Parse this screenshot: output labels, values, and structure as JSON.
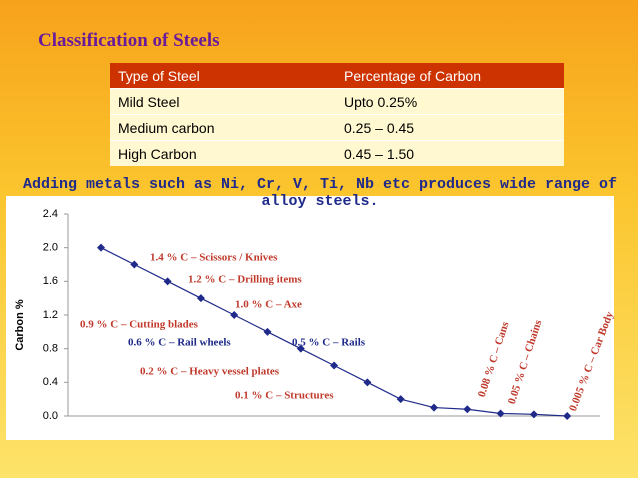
{
  "title": "Classification of  Steels",
  "table": {
    "header": [
      "Type of Steel",
      "Percentage of Carbon"
    ],
    "rows": [
      [
        "Mild Steel",
        "Upto 0.25%"
      ],
      [
        "Medium carbon",
        "0.25 – 0.45"
      ],
      [
        "High Carbon",
        "0.45 – 1.50"
      ]
    ]
  },
  "note": "Adding metals such as Ni, Cr, V, Ti, Nb etc produces wide range of alloy steels.",
  "chart_data": {
    "type": "line",
    "y_label": "Carbon %",
    "categories": [
      null,
      null,
      null,
      null,
      null,
      null,
      null,
      null,
      null,
      null,
      null,
      null,
      null,
      null,
      null
    ],
    "series": [
      {
        "color": "#1f2a8a",
        "values": [
          2.0,
          1.8,
          1.6,
          1.4,
          1.2,
          1.0,
          0.8,
          0.6,
          0.4,
          0.2,
          0.1,
          0.08,
          0.03,
          0.02,
          0.0
        ]
      }
    ],
    "ylim": [
      0,
      2.4
    ],
    "yticks": [
      {
        "value": 0,
        "label": "0.0"
      },
      0.4,
      0.8,
      1.2,
      1.6,
      {
        "value": 2,
        "label": "2.0"
      },
      2.4
    ],
    "annotations": [
      {
        "text": "1.4 % C – Scissors / Knives",
        "color": "#c0392b"
      },
      {
        "text": "1.2 % C – Drilling items",
        "color": "#c0392b"
      },
      {
        "text": "1.0 % C – Axe",
        "color": "#c0392b"
      },
      {
        "text": "0.9 % C – Cutting blades",
        "color": "#c0392b"
      },
      {
        "text": "0.6 % C – Rail wheels",
        "color": "#1f2a8a"
      },
      {
        "text": "0.5 % C – Rails",
        "color": "#1f2a8a"
      },
      {
        "text": "0.2 % C – Heavy vessel plates",
        "color": "#c0392b"
      },
      {
        "text": "0.1 % C – Structures",
        "color": "#c0392b"
      },
      {
        "text": "0.08 % C – Cans",
        "color": "#c0392b"
      },
      {
        "text": "0.05 % C – Chains",
        "color": "#c0392b"
      },
      {
        "text": "0.005 % C – Car Body",
        "color": "#c0392b"
      }
    ]
  }
}
